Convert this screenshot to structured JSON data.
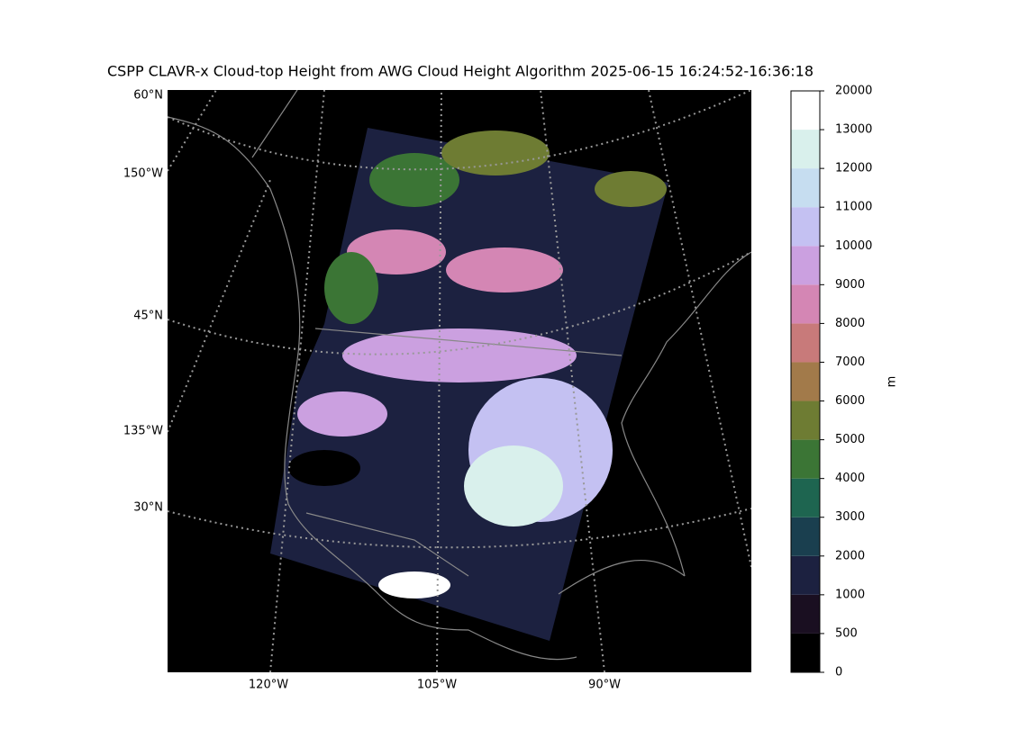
{
  "map": {
    "title": "CSPP CLAVR-x Cloud-top Height from AWG Cloud Height Algorithm 2025-06-15 16:24:52-16:36:18",
    "lat_lon_labels": [
      "60°N",
      "150°W",
      "45°N",
      "135°W",
      "30°N"
    ],
    "bottom_labels": [
      "120°W",
      "105°W",
      "90°W"
    ]
  },
  "colorbar": {
    "label": "m",
    "levels": [
      0,
      500,
      1000,
      2000,
      3000,
      4000,
      5000,
      6000,
      7000,
      8000,
      9000,
      10000,
      11000,
      12000,
      13000,
      20000
    ],
    "colors": [
      "#000000",
      "#1a0f21",
      "#1c2140",
      "#1a3f4f",
      "#1e6550",
      "#3b7535",
      "#6e7c33",
      "#a27a4a",
      "#c87a7a",
      "#d486b4",
      "#cba0e0",
      "#c4c1f2",
      "#c6ddf0",
      "#d9f0ec",
      "#ffffff"
    ]
  }
}
